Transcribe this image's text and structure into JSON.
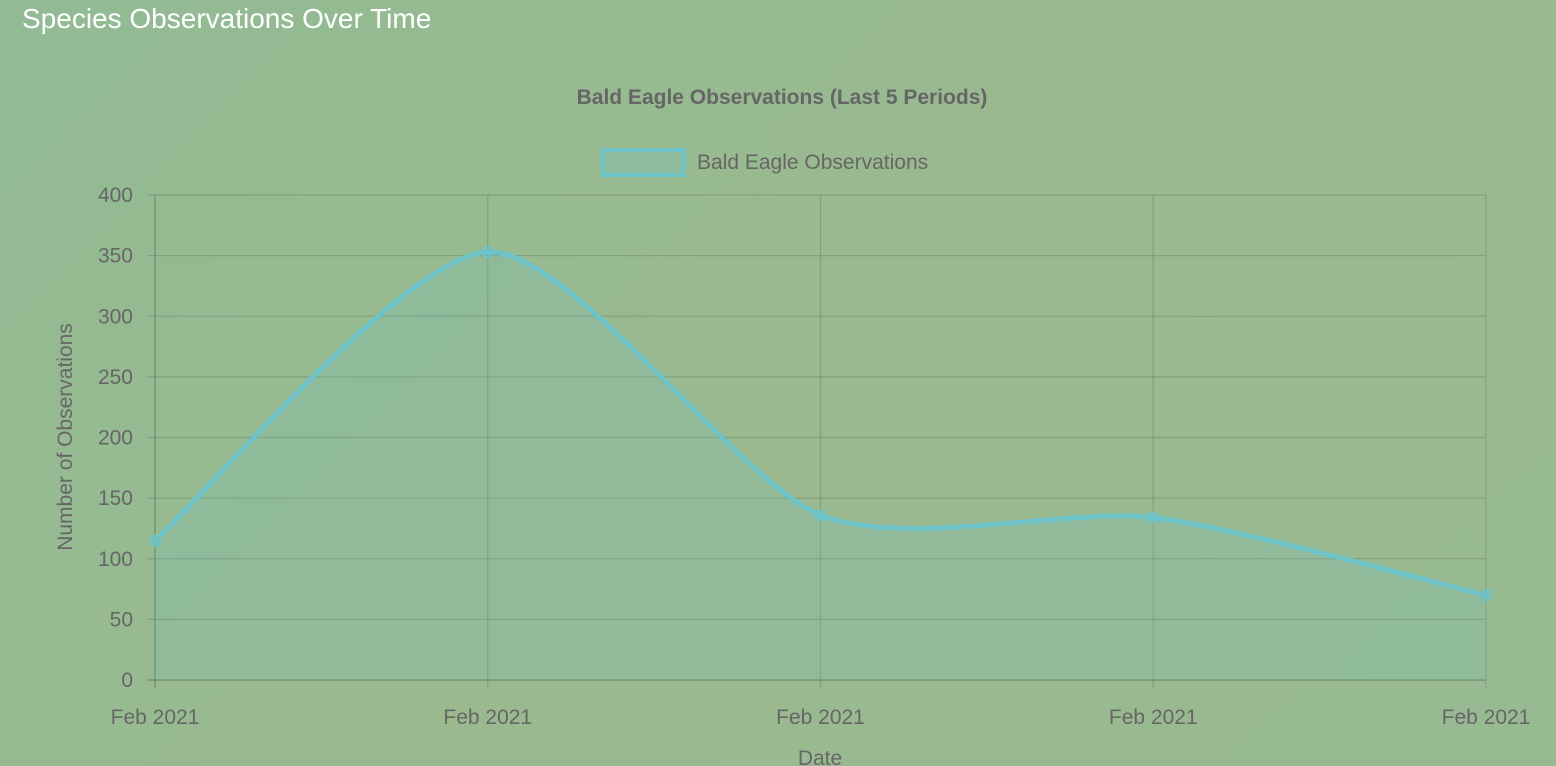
{
  "page": {
    "heading": "Species Observations Over Time"
  },
  "chart_data": {
    "type": "line",
    "title": "Bald Eagle Observations (Last 5 Periods)",
    "xlabel": "Date",
    "ylabel": "Number of Observations",
    "categories": [
      "Feb 2021",
      "Feb 2021",
      "Feb 2021",
      "Feb 2021",
      "Feb 2021"
    ],
    "series": [
      {
        "name": "Bald Eagle Observations",
        "values": [
          115,
          353,
          136,
          134,
          70
        ],
        "color": "#6ec3c9",
        "fill": true
      }
    ],
    "ylim": [
      0,
      400
    ],
    "yticks": [
      0,
      50,
      100,
      150,
      200,
      250,
      300,
      350,
      400
    ],
    "grid": true,
    "legend": "top-center"
  }
}
